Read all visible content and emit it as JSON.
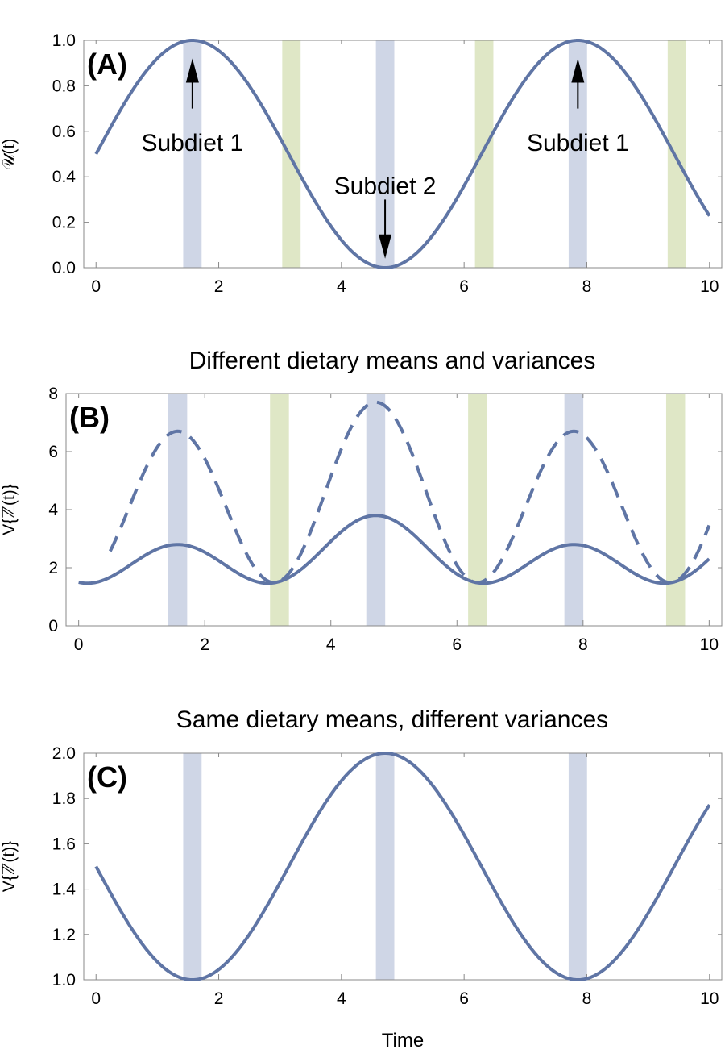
{
  "colors": {
    "curve": "#5f75a5",
    "band_blue": "#cfd6e6",
    "band_green": "#dfe7c6",
    "frame": "#888888",
    "arrow": "#000000"
  },
  "xlabel": "Time",
  "chart_data": [
    {
      "type": "line",
      "panel_label": "(A)",
      "title": "",
      "ylabel": "𝒰(t)",
      "xlim": [
        -0.2,
        10.2
      ],
      "ylim": [
        0,
        1
      ],
      "xticks": [
        0,
        2,
        4,
        6,
        8,
        10
      ],
      "yticks": [
        0.0,
        0.2,
        0.4,
        0.6,
        0.8,
        1.0
      ],
      "ytick_labels": [
        "0.0",
        "0.2",
        "0.4",
        "0.6",
        "0.8",
        "1.0"
      ],
      "series": [
        {
          "name": "U(t)",
          "style": "solid",
          "function": "0.5 + 0.5*sin(t)",
          "x_range": [
            0,
            10
          ]
        }
      ],
      "bands_blue": [
        1.571,
        4.712,
        7.854
      ],
      "bands_green": [
        3.185,
        6.327,
        9.468
      ],
      "band_width": 0.3,
      "annotations": [
        {
          "text": "Subdiet 1",
          "x": 1.571,
          "y": 0.55,
          "arrow": "up",
          "arrow_from": 0.7,
          "arrow_to": 0.92
        },
        {
          "text": "Subdiet 2",
          "x": 4.712,
          "y": 0.36,
          "arrow": "down",
          "arrow_from": 0.3,
          "arrow_to": 0.04
        },
        {
          "text": "Subdiet 1",
          "x": 7.854,
          "y": 0.55,
          "arrow": "up",
          "arrow_from": 0.7,
          "arrow_to": 0.92
        }
      ]
    },
    {
      "type": "line",
      "panel_label": "(B)",
      "title": "Different dietary means and variances",
      "ylabel": "V{ℤ(t)}",
      "xlim": [
        -0.2,
        10.2
      ],
      "ylim": [
        0,
        8
      ],
      "xticks": [
        0,
        2,
        4,
        6,
        8,
        10
      ],
      "yticks": [
        0,
        2,
        4,
        6,
        8
      ],
      "ytick_labels": [
        "0",
        "2",
        "4",
        "6",
        "8"
      ],
      "series": [
        {
          "name": "solid",
          "style": "solid",
          "function": "1.5 + 0.5*sin(t) + 2.25*cos(t)^2 - 0.5*(...)",
          "x_range": [
            0,
            10
          ]
        },
        {
          "name": "dashed",
          "style": "dashed",
          "function": "piecewise",
          "x_range": [
            0.5,
            10
          ]
        }
      ],
      "bands_blue": [
        1.571,
        4.712,
        7.854
      ],
      "bands_green": [
        3.185,
        6.327,
        9.468
      ],
      "band_width": 0.3,
      "annotations": []
    },
    {
      "type": "line",
      "panel_label": "(C)",
      "title": "Same dietary means, different variances",
      "ylabel": "V{ℤ(t)}",
      "xlim": [
        -0.2,
        10.2
      ],
      "ylim": [
        1,
        2
      ],
      "xticks": [
        0,
        2,
        4,
        6,
        8,
        10
      ],
      "yticks": [
        1.0,
        1.2,
        1.4,
        1.6,
        1.8,
        2.0
      ],
      "ytick_labels": [
        "1.0",
        "1.2",
        "1.4",
        "1.6",
        "1.8",
        "2.0"
      ],
      "series": [
        {
          "name": "V",
          "style": "solid",
          "function": "1.5 - 0.5*sin(t)",
          "x_range": [
            0,
            10
          ]
        }
      ],
      "bands_blue": [
        1.571,
        4.712,
        7.854
      ],
      "bands_green": [],
      "band_width": 0.3,
      "annotations": []
    }
  ]
}
